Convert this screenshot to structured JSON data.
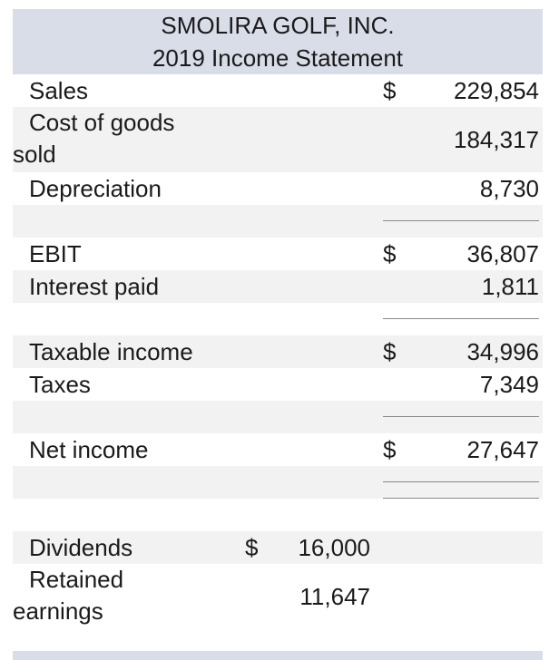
{
  "header": {
    "company": "SMOLIRA GOLF, INC.",
    "title": "2019 Income Statement"
  },
  "income_statement": {
    "sales": {
      "label": "Sales",
      "currency": "$",
      "value": "229,854"
    },
    "cogs": {
      "label_line1": "Cost of goods",
      "label_line2": "sold",
      "value": "184,317"
    },
    "depreciation": {
      "label": "Depreciation",
      "value": "8,730"
    },
    "ebit": {
      "label": "EBIT",
      "currency": "$",
      "value": "36,807"
    },
    "interest": {
      "label": "Interest paid",
      "value": "1,811"
    },
    "taxable_income": {
      "label": "Taxable income",
      "currency": "$",
      "value": "34,996"
    },
    "taxes": {
      "label": "Taxes",
      "value": "7,349"
    },
    "net_income": {
      "label": "Net income",
      "currency": "$",
      "value": "27,647"
    },
    "dividends": {
      "label": "Dividends",
      "currency": "$",
      "value": "16,000"
    },
    "retained": {
      "label_line1": "Retained",
      "label_line2": "earnings",
      "value": "11,647"
    }
  }
}
